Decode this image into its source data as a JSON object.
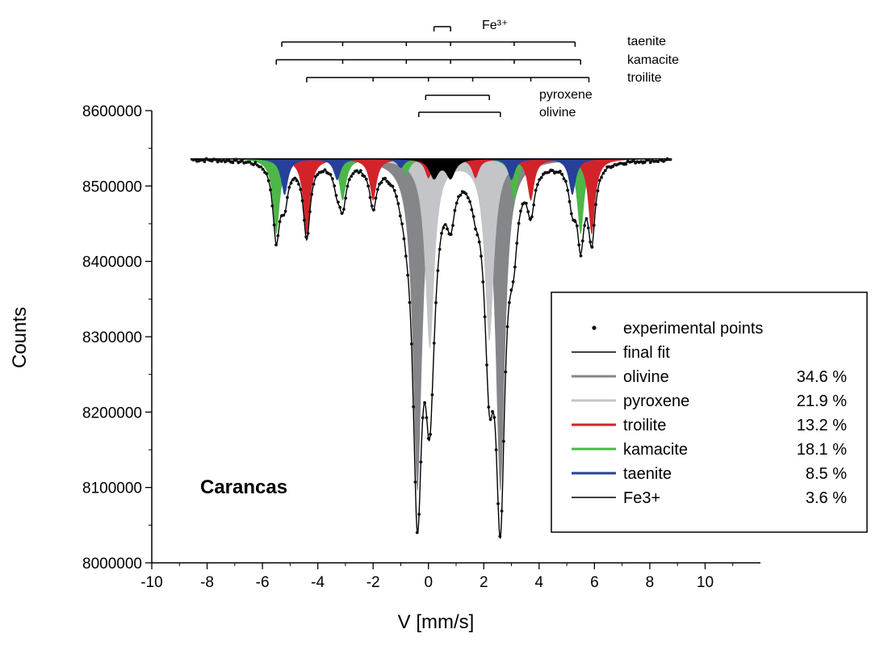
{
  "chart_data": {
    "type": "line",
    "xlabel": "V [mm/s]",
    "ylabel": "Counts",
    "xlim": [
      -10,
      12
    ],
    "ylim": [
      8000000,
      8600000
    ],
    "x_ticks": [
      -10,
      -8,
      -6,
      -4,
      -2,
      0,
      2,
      4,
      6,
      8,
      10
    ],
    "y_ticks": [
      8000000,
      8100000,
      8200000,
      8300000,
      8400000,
      8500000,
      8600000
    ],
    "baseline": 8536000,
    "sample_label": "Carancas",
    "legend": {
      "placement": "right",
      "entries": [
        {
          "label": "experimental points",
          "pct": ""
        },
        {
          "label": "final fit",
          "pct": ""
        },
        {
          "label": "olivine",
          "pct": "34.6 %"
        },
        {
          "label": "pyroxene",
          "pct": "21.9 %"
        },
        {
          "label": "troilite",
          "pct": "13.2 %"
        },
        {
          "label": "kamacite",
          "pct": "18.1 %"
        },
        {
          "label": "taenite",
          "pct": "8.5 %"
        },
        {
          "label": "Fe3+",
          "pct": "3.6 %"
        }
      ]
    },
    "components": [
      {
        "name": "olivine",
        "color": "#848689",
        "hwhm": 0.2,
        "lines": [
          [
            -0.4,
            440000
          ],
          [
            2.6,
            440000
          ]
        ]
      },
      {
        "name": "pyroxene",
        "color": "#c4c5c8",
        "hwhm": 0.2,
        "lines": [
          [
            0.05,
            250000
          ],
          [
            2.2,
            240000
          ]
        ]
      },
      {
        "name": "troilite",
        "color": "#d2232a",
        "hwhm": 0.15,
        "lines": [
          [
            -4.4,
            100000
          ],
          [
            -2.0,
            55000
          ],
          [
            0.0,
            25000
          ],
          [
            1.7,
            25000
          ],
          [
            3.7,
            55000
          ],
          [
            5.9,
            100000
          ]
        ]
      },
      {
        "name": "kamacite",
        "color": "#4db748",
        "hwhm": 0.15,
        "lines": [
          [
            -5.5,
            100000
          ],
          [
            -3.1,
            55000
          ],
          [
            -0.8,
            20000
          ],
          [
            0.8,
            20000
          ],
          [
            3.1,
            55000
          ],
          [
            5.5,
            100000
          ]
        ]
      },
      {
        "name": "taenite",
        "color": "#27409a",
        "hwhm": 0.15,
        "lines": [
          [
            -5.2,
            48000
          ],
          [
            -3.3,
            28000
          ],
          [
            -1.0,
            12000
          ],
          [
            0.8,
            12000
          ],
          [
            3.0,
            28000
          ],
          [
            5.2,
            48000
          ]
        ]
      },
      {
        "name": "Fe3+",
        "color": "#000000",
        "hwhm": 0.2,
        "lines": [
          [
            0.2,
            25000
          ],
          [
            0.8,
            25000
          ]
        ]
      }
    ],
    "stick_markers": [
      {
        "label": "Fe³⁺",
        "positions": [
          0.2,
          0.8
        ]
      },
      {
        "label": "taenite",
        "positions": [
          -5.3,
          -3.1,
          -0.8,
          0.8,
          3.1,
          5.3
        ]
      },
      {
        "label": "kamacite",
        "positions": [
          -5.5,
          -3.1,
          -0.8,
          0.8,
          3.1,
          5.5
        ]
      },
      {
        "label": "troilite",
        "positions": [
          -4.4,
          -2.0,
          0.0,
          1.6,
          3.7,
          5.8
        ]
      },
      {
        "label": "pyroxene",
        "positions": [
          -0.1,
          2.2
        ]
      },
      {
        "label": "olivine",
        "positions": [
          -0.35,
          2.6
        ]
      }
    ]
  }
}
